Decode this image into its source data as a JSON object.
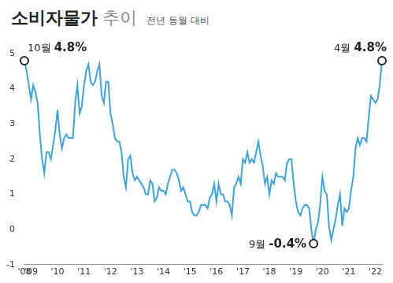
{
  "chart_data": {
    "type": "line",
    "title": "소비자물가 추이",
    "subtitle": "전년 동월 대비",
    "categories": [
      "'08",
      null,
      null,
      "'09",
      null,
      null,
      null,
      null,
      null,
      null,
      null,
      null,
      null,
      null,
      null,
      "'10",
      null,
      null,
      null,
      null,
      null,
      null,
      null,
      null,
      null,
      null,
      null,
      "'11",
      null,
      null,
      null,
      null,
      null,
      null,
      null,
      null,
      null,
      null,
      null,
      "'12",
      null,
      null,
      null,
      null,
      null,
      null,
      null,
      null,
      null,
      null,
      null,
      "'13",
      null,
      null,
      null,
      null,
      null,
      null,
      null,
      null,
      null,
      null,
      null,
      "'14",
      null,
      null,
      null,
      null,
      null,
      null,
      null,
      null,
      null,
      null,
      null,
      "'15",
      null,
      null,
      null,
      null,
      null,
      null,
      null,
      null,
      null,
      null,
      null,
      "'16",
      null,
      null,
      null,
      null,
      null,
      null,
      null,
      null,
      null,
      null,
      null,
      "'17",
      null,
      null,
      null,
      null,
      null,
      null,
      null,
      null,
      null,
      null,
      null,
      "'18",
      null,
      null,
      null,
      null,
      null,
      null,
      null,
      null,
      null,
      null,
      null,
      "'19",
      null,
      null,
      null,
      null,
      null,
      null,
      null,
      null,
      null,
      null,
      null,
      "'20",
      null,
      null,
      null,
      null,
      null,
      null,
      null,
      null,
      null,
      null,
      null,
      "'21",
      null,
      null,
      null,
      null,
      null,
      null,
      null,
      null,
      null,
      null,
      null,
      "'22",
      null,
      null,
      null
    ],
    "values": [
      4.8,
      4.5,
      4.1,
      3.7,
      4.1,
      3.9,
      3.6,
      2.7,
      2.0,
      1.6,
      2.2,
      2.2,
      2.0,
      2.4,
      2.8,
      3.4,
      2.7,
      2.3,
      2.6,
      2.7,
      2.6,
      2.6,
      2.6,
      3.6,
      4.1,
      3.3,
      3.5,
      4.1,
      4.5,
      4.7,
      4.2,
      4.1,
      4.2,
      4.5,
      4.7,
      3.8,
      3.6,
      4.2,
      4.2,
      3.3,
      3.0,
      2.6,
      2.5,
      2.5,
      2.2,
      1.5,
      1.2,
      2.0,
      2.1,
      1.6,
      1.4,
      1.5,
      1.4,
      1.3,
      1.2,
      1.0,
      1.0,
      1.4,
      1.3,
      0.8,
      0.9,
      1.2,
      1.1,
      1.1,
      1.0,
      1.3,
      1.5,
      1.7,
      1.7,
      1.6,
      1.4,
      1.1,
      1.2,
      1.0,
      0.8,
      0.8,
      0.5,
      0.4,
      0.4,
      0.5,
      0.7,
      0.7,
      0.7,
      0.6,
      0.9,
      1.0,
      1.3,
      0.8,
      1.3,
      1.0,
      1.0,
      0.8,
      0.8,
      0.7,
      0.4,
      1.2,
      1.3,
      1.5,
      1.3,
      2.0,
      1.9,
      2.2,
      1.9,
      2.0,
      1.9,
      2.2,
      2.5,
      2.1,
      1.8,
      1.3,
      1.5,
      1.0,
      1.4,
      1.3,
      1.6,
      1.5,
      1.5,
      1.5,
      1.4,
      1.9,
      2.0,
      2.0,
      1.3,
      0.8,
      0.5,
      0.4,
      0.6,
      0.7,
      0.7,
      0.6,
      0.0,
      -0.4,
      0.0,
      0.2,
      0.7,
      1.5,
      1.1,
      1.0,
      0.1,
      -0.3,
      0.0,
      0.3,
      0.7,
      1.0,
      0.1,
      0.6,
      0.5,
      0.6,
      1.1,
      1.5,
      2.3,
      2.6,
      2.4,
      2.6,
      2.6,
      2.5,
      3.2,
      3.8,
      3.7,
      3.6,
      3.7,
      4.1,
      4.8
    ],
    "color": "#3da3dc",
    "ylim": [
      -1,
      5
    ],
    "yticks": [
      -1,
      0,
      1,
      2,
      3,
      4,
      5
    ],
    "grid": false,
    "annotations": [
      {
        "index": 0,
        "label": "10월",
        "value_label": "4.8%"
      },
      {
        "index": 131,
        "label": "9월",
        "value_label": "-0.4%"
      },
      {
        "index": 162,
        "label": "4월",
        "value_label": "4.8%"
      }
    ]
  }
}
